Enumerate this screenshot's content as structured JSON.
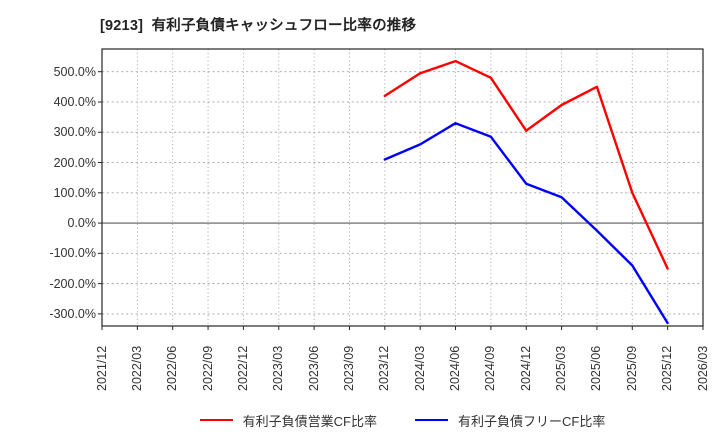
{
  "title": "[9213]  有利子負債キャッシュフロー比率の推移",
  "chart_data": {
    "type": "line",
    "title": "[9213]  有利子負債キャッシュフロー比率の推移",
    "categories": [
      "2021/12",
      "2022/03",
      "2022/06",
      "2022/09",
      "2022/12",
      "2023/03",
      "2023/06",
      "2023/09",
      "2023/12",
      "2024/03",
      "2024/06",
      "2024/09",
      "2024/12",
      "2025/03",
      "2025/06",
      "2025/09",
      "2025/12",
      "2026/03"
    ],
    "series": [
      {
        "name": "有利子負債営業CF比率",
        "color": "#ff0000",
        "values": [
          null,
          null,
          null,
          null,
          null,
          null,
          null,
          null,
          420,
          495,
          535,
          480,
          305,
          390,
          450,
          100,
          -150,
          null
        ]
      },
      {
        "name": "有利子負債フリーCF比率",
        "color": "#0000ff",
        "values": [
          null,
          null,
          null,
          null,
          null,
          null,
          null,
          null,
          210,
          260,
          330,
          285,
          130,
          85,
          -25,
          -140,
          -330,
          null
        ]
      }
    ],
    "yticks": [
      500,
      400,
      300,
      200,
      100,
      0,
      -100,
      -200,
      -300
    ],
    "ytick_labels": [
      "500.0%",
      "400.0%",
      "300.0%",
      "200.0%",
      "100.0%",
      "0.0%",
      "-100.0%",
      "-200.0%",
      "-300.0%"
    ],
    "ylim": [
      -340,
      575
    ],
    "unit": "%",
    "grid": true,
    "legend_position": "bottom"
  }
}
